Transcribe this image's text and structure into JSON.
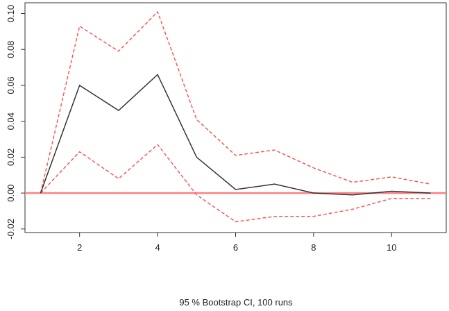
{
  "chart_data": {
    "type": "line",
    "title": "",
    "xlabel": "",
    "ylabel": "",
    "caption": "95 % Bootstrap CI,  100 runs",
    "x": [
      1,
      2,
      3,
      4,
      5,
      6,
      7,
      8,
      9,
      10,
      11
    ],
    "xlim": [
      0.6,
      11.4
    ],
    "ylim": [
      -0.022,
      0.106
    ],
    "x_ticks": [
      2,
      4,
      6,
      8,
      10
    ],
    "y_ticks": [
      -0.02,
      0.0,
      0.02,
      0.04,
      0.06,
      0.08,
      0.1
    ],
    "y_tick_labels": [
      "-0.02",
      "0.00",
      "0.02",
      "0.04",
      "0.06",
      "0.08",
      "0.10"
    ],
    "grid": false,
    "reference_line": {
      "y": 0.0,
      "color": "#ff8080"
    },
    "series": [
      {
        "role": "estimate",
        "color": "#333333",
        "style": "solid",
        "values": [
          0.0,
          0.06,
          0.046,
          0.066,
          0.02,
          0.002,
          0.005,
          0.0,
          -0.001,
          0.001,
          0.0
        ]
      },
      {
        "role": "upper",
        "color": "#ff4d4d",
        "style": "dashed",
        "values": [
          0.0,
          0.093,
          0.079,
          0.101,
          0.041,
          0.021,
          0.024,
          0.014,
          0.006,
          0.009,
          0.005
        ]
      },
      {
        "role": "lower",
        "color": "#ff4d4d",
        "style": "dashed",
        "values": [
          0.0,
          0.023,
          0.008,
          0.027,
          -0.001,
          -0.016,
          -0.013,
          -0.013,
          -0.009,
          -0.003,
          -0.003
        ]
      }
    ]
  }
}
